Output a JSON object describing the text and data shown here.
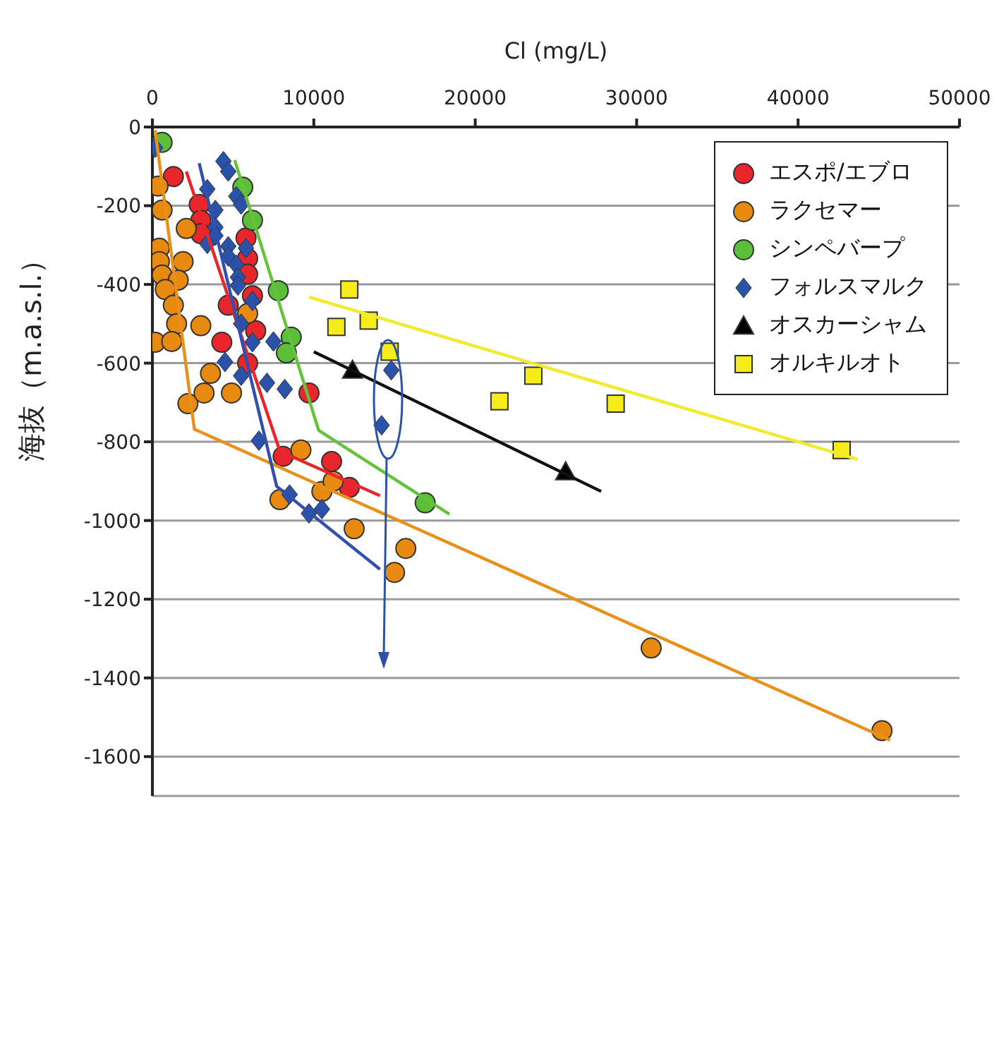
{
  "chart_data": {
    "type": "scatter",
    "xlabel": "Cl (mg/L)",
    "ylabel": "海抜（m.a.s.l.）",
    "xlim": [
      0,
      50000
    ],
    "xticks": [
      0,
      10000,
      20000,
      30000,
      40000,
      50000
    ],
    "ylim": [
      -1700,
      0
    ],
    "yticks": [
      0,
      -200,
      -400,
      -600,
      -800,
      -1000,
      -1200,
      -1400,
      -1600
    ],
    "grid": "y",
    "legend": "top right",
    "series": [
      {
        "name": "エスポ/エブロ",
        "color": "#e8262b",
        "marker": "circle",
        "x": [
          1300,
          2900,
          3000,
          3000,
          5800,
          5900,
          5900,
          6200,
          4700,
          6400,
          4300,
          5900,
          9700,
          8100,
          11100,
          12200
        ],
        "values": [
          -126,
          -197,
          -237,
          -271,
          -282,
          -334,
          -374,
          -429,
          -453,
          -518,
          -547,
          -600,
          -676,
          -837,
          -850,
          -916
        ]
      },
      {
        "name": "ラクセマー",
        "color": "#e88a10",
        "marker": "circle",
        "x": [
          350,
          600,
          2100,
          430,
          430,
          1900,
          600,
          1600,
          800,
          1300,
          1500,
          3000,
          170,
          1200,
          2200,
          3200,
          3600,
          4900,
          5900,
          9200,
          7900,
          10500,
          11200,
          12500,
          15700,
          15000,
          30900,
          45200
        ],
        "values": [
          -150,
          -211,
          -258,
          -308,
          -342,
          -342,
          -376,
          -389,
          -413,
          -453,
          -500,
          -505,
          -547,
          -545,
          -703,
          -676,
          -626,
          -676,
          -474,
          -821,
          -947,
          -926,
          -900,
          -1021,
          -1071,
          -1132,
          -1324,
          -1534
        ]
      },
      {
        "name": "シンペバープ",
        "color": "#5bbf3a",
        "marker": "circle",
        "x": [
          600,
          5600,
          6200,
          7800,
          8600,
          8300,
          16900
        ],
        "values": [
          -39,
          -153,
          -237,
          -416,
          -534,
          -574,
          -955
        ]
      },
      {
        "name": "フォルスマルク",
        "color": "#2a52a8",
        "marker": "diamond",
        "x": [
          170,
          4400,
          4700,
          3400,
          5200,
          5500,
          3900,
          3900,
          3900,
          3400,
          4700,
          5800,
          4700,
          5200,
          5300,
          5300,
          6200,
          5500,
          6200,
          7500,
          4500,
          5500,
          7100,
          8200,
          14800,
          14200,
          6600,
          8500,
          9700,
          10500
        ],
        "values": [
          -53,
          -87,
          -113,
          -158,
          -176,
          -197,
          -211,
          -255,
          -276,
          -297,
          -303,
          -308,
          -329,
          -350,
          -382,
          -403,
          -442,
          -500,
          -547,
          -545,
          -597,
          -632,
          -650,
          -666,
          -618,
          -758,
          -797,
          -934,
          -982,
          -971
        ]
      },
      {
        "name": "オスカーシャム",
        "color": "#000000",
        "marker": "triangle",
        "x": [
          12400,
          25600
        ],
        "values": [
          -618,
          -876
        ]
      },
      {
        "name": "オルキルオト",
        "color": "#f5ec1a",
        "marker": "square",
        "x": [
          12200,
          11400,
          13400,
          14700,
          23600,
          21500,
          28700,
          42700
        ],
        "values": [
          -413,
          -508,
          -492,
          -571,
          -632,
          -697,
          -703,
          -821
        ]
      },
      {
        "type": "line",
        "color": "#e8262b",
        "marker": "none",
        "x": [
          2100,
          7900,
          14100
        ],
        "values": [
          -113,
          -824,
          -937
        ]
      },
      {
        "type": "line",
        "color": "#e8901c",
        "marker": "none",
        "x": [
          170,
          2600,
          45700
        ],
        "values": [
          -8,
          -768,
          -1558
        ]
      },
      {
        "type": "line",
        "color": "#66c23c",
        "marker": "none",
        "x": [
          5100,
          10300,
          18400
        ],
        "values": [
          -84,
          -771,
          -984
        ]
      },
      {
        "type": "line",
        "color": "#3050b0",
        "marker": "none",
        "x": [
          2900,
          7700,
          14100
        ],
        "values": [
          -92,
          -913,
          -1124
        ]
      },
      {
        "type": "line",
        "color": "#111111",
        "marker": "none",
        "x": [
          10000,
          27800
        ],
        "values": [
          -571,
          -926
        ]
      },
      {
        "type": "line",
        "color": "#f0ea30",
        "marker": "none",
        "x": [
          9700,
          43700
        ],
        "values": [
          -432,
          -845
        ]
      }
    ]
  }
}
